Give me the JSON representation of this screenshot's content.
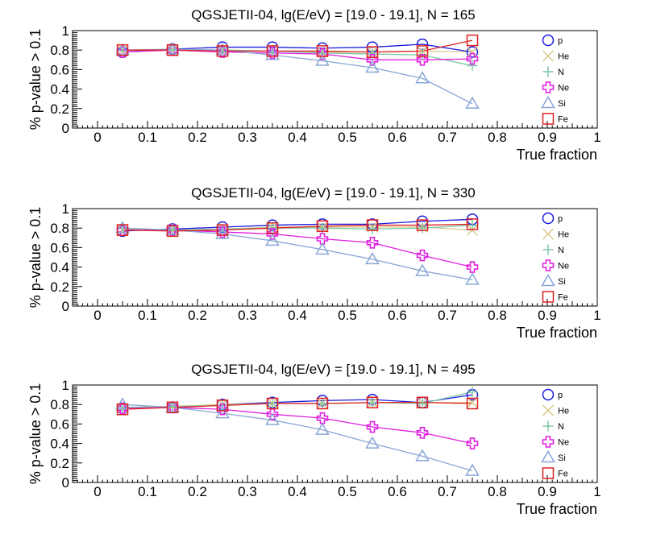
{
  "chart_data": [
    {
      "type": "line",
      "title": "QGSJETII-04, lg(E/eV) = [19.0 - 19.1], N = 165",
      "xlabel": "True fraction",
      "ylabel": "% p-value > 0.1",
      "xlim": [
        -0.05,
        1.0
      ],
      "ylim": [
        0,
        1
      ],
      "xticks": [
        "0",
        "0.1",
        "0.2",
        "0.3",
        "0.4",
        "0.5",
        "0.6",
        "0.7",
        "0.8",
        "0.9",
        "1"
      ],
      "yticks": [
        "0",
        "0.2",
        "0.4",
        "0.6",
        "0.8",
        "1"
      ],
      "x": [
        0.05,
        0.15,
        0.25,
        0.35,
        0.45,
        0.55,
        0.65,
        0.75
      ],
      "series": [
        {
          "name": "p",
          "color": "#1c1cde",
          "marker": "circle",
          "values": [
            0.78,
            0.81,
            0.83,
            0.83,
            0.82,
            0.83,
            0.86,
            0.78
          ]
        },
        {
          "name": "He",
          "color": "#d8c98a",
          "marker": "cross",
          "values": [
            0.8,
            0.8,
            0.8,
            0.79,
            0.78,
            0.78,
            0.79,
            0.78
          ]
        },
        {
          "name": "N",
          "color": "#7dc7a6",
          "marker": "plus",
          "values": [
            0.8,
            0.8,
            0.8,
            0.79,
            0.77,
            0.76,
            0.75,
            0.64
          ]
        },
        {
          "name": "Ne",
          "color": "#e020e0",
          "marker": "cross-fat",
          "values": [
            0.78,
            0.8,
            0.78,
            0.77,
            0.76,
            0.7,
            0.7,
            0.71
          ]
        },
        {
          "name": "Si",
          "color": "#8aa5d5",
          "marker": "triangle",
          "values": [
            0.8,
            0.81,
            0.8,
            0.75,
            0.69,
            0.62,
            0.51,
            0.25
          ]
        },
        {
          "name": "Fe",
          "color": "#e02020",
          "marker": "square",
          "values": [
            0.8,
            0.8,
            0.79,
            0.79,
            0.79,
            0.78,
            0.79,
            0.9
          ]
        }
      ]
    },
    {
      "type": "line",
      "title": "QGSJETII-04, lg(E/eV) = [19.0 - 19.1], N = 330",
      "xlabel": "True fraction",
      "ylabel": "% p-value > 0.1",
      "xlim": [
        -0.05,
        1.0
      ],
      "ylim": [
        0,
        1
      ],
      "xticks": [
        "0",
        "0.1",
        "0.2",
        "0.3",
        "0.4",
        "0.5",
        "0.6",
        "0.7",
        "0.8",
        "0.9",
        "1"
      ],
      "yticks": [
        "0",
        "0.2",
        "0.4",
        "0.6",
        "0.8",
        "1"
      ],
      "x": [
        0.05,
        0.15,
        0.25,
        0.35,
        0.45,
        0.55,
        0.65,
        0.75
      ],
      "series": [
        {
          "name": "p",
          "color": "#1c1cde",
          "marker": "circle",
          "values": [
            0.77,
            0.79,
            0.81,
            0.83,
            0.84,
            0.84,
            0.87,
            0.89
          ]
        },
        {
          "name": "He",
          "color": "#d8c98a",
          "marker": "cross",
          "values": [
            0.79,
            0.78,
            0.79,
            0.81,
            0.81,
            0.81,
            0.81,
            0.78
          ]
        },
        {
          "name": "N",
          "color": "#7dc7a6",
          "marker": "plus",
          "values": [
            0.8,
            0.78,
            0.79,
            0.8,
            0.8,
            0.79,
            0.8,
            0.83
          ]
        },
        {
          "name": "Ne",
          "color": "#e020e0",
          "marker": "cross-fat",
          "values": [
            0.78,
            0.78,
            0.76,
            0.74,
            0.69,
            0.65,
            0.52,
            0.4
          ]
        },
        {
          "name": "Si",
          "color": "#8aa5d5",
          "marker": "triangle",
          "values": [
            0.8,
            0.78,
            0.74,
            0.67,
            0.58,
            0.48,
            0.36,
            0.27
          ]
        },
        {
          "name": "Fe",
          "color": "#e02020",
          "marker": "square",
          "values": [
            0.78,
            0.77,
            0.78,
            0.8,
            0.82,
            0.83,
            0.83,
            0.84
          ]
        }
      ]
    },
    {
      "type": "line",
      "title": "QGSJETII-04, lg(E/eV) = [19.0 - 19.1], N = 495",
      "xlabel": "True fraction",
      "ylabel": "% p-value > 0.1",
      "xlim": [
        -0.05,
        1.0
      ],
      "ylim": [
        0,
        1
      ],
      "xticks": [
        "0",
        "0.1",
        "0.2",
        "0.3",
        "0.4",
        "0.5",
        "0.6",
        "0.7",
        "0.8",
        "0.9",
        "1"
      ],
      "yticks": [
        "0",
        "0.2",
        "0.4",
        "0.6",
        "0.8",
        "1"
      ],
      "x": [
        0.05,
        0.15,
        0.25,
        0.35,
        0.45,
        0.55,
        0.65,
        0.75
      ],
      "series": [
        {
          "name": "p",
          "color": "#1c1cde",
          "marker": "circle",
          "values": [
            0.76,
            0.77,
            0.8,
            0.82,
            0.84,
            0.85,
            0.82,
            0.9
          ]
        },
        {
          "name": "He",
          "color": "#d8c98a",
          "marker": "cross",
          "values": [
            0.76,
            0.78,
            0.8,
            0.81,
            0.81,
            0.82,
            0.82,
            0.82
          ]
        },
        {
          "name": "N",
          "color": "#7dc7a6",
          "marker": "plus",
          "values": [
            0.77,
            0.78,
            0.79,
            0.81,
            0.81,
            0.82,
            0.81,
            0.93
          ]
        },
        {
          "name": "Ne",
          "color": "#e020e0",
          "marker": "cross-fat",
          "values": [
            0.76,
            0.77,
            0.75,
            0.7,
            0.66,
            0.57,
            0.51,
            0.4
          ]
        },
        {
          "name": "Si",
          "color": "#8aa5d5",
          "marker": "triangle",
          "values": [
            0.8,
            0.77,
            0.71,
            0.64,
            0.54,
            0.4,
            0.27,
            0.12
          ]
        },
        {
          "name": "Fe",
          "color": "#e02020",
          "marker": "square",
          "values": [
            0.75,
            0.77,
            0.79,
            0.81,
            0.81,
            0.82,
            0.82,
            0.81
          ]
        }
      ]
    }
  ]
}
